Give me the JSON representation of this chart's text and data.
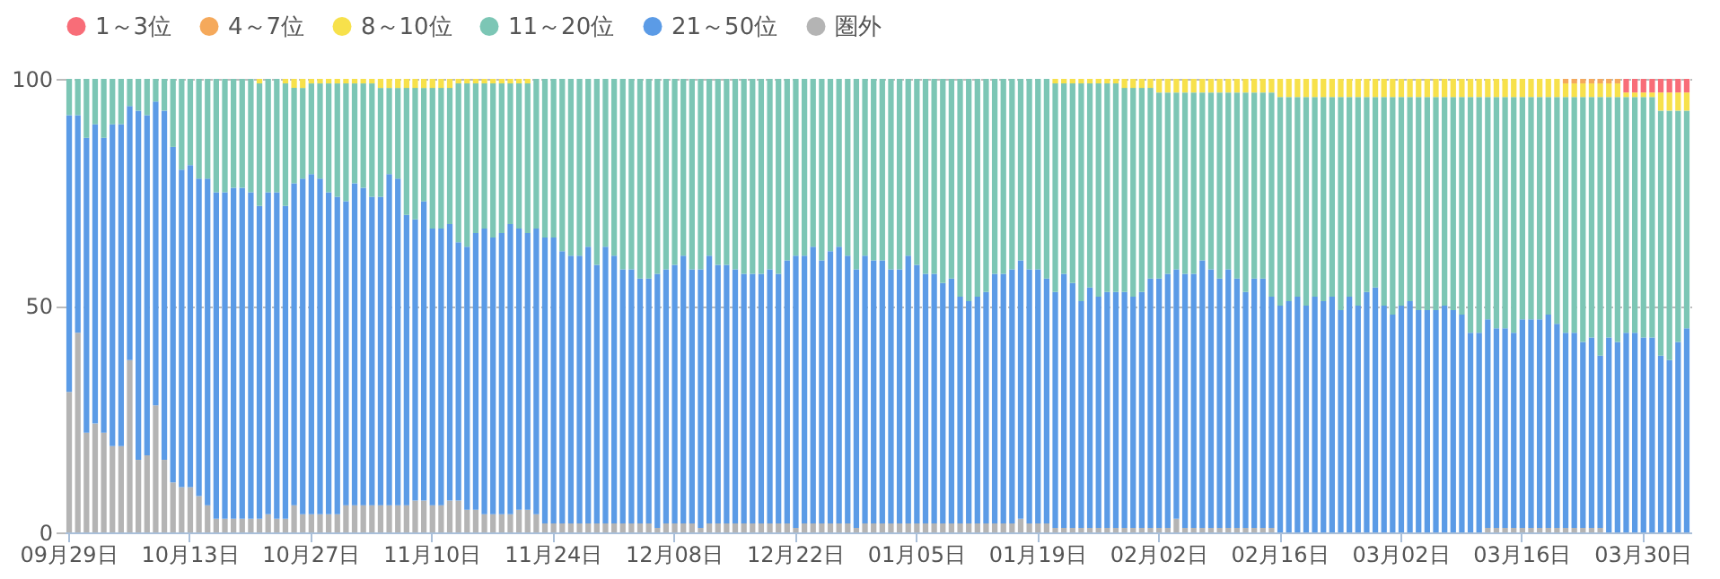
{
  "chart_data": {
    "type": "bar",
    "stacked": true,
    "grid": "y",
    "legend": "top left",
    "ylim": [
      0,
      100
    ],
    "yticks": [
      0,
      50,
      100
    ],
    "categories": [
      "09月29日",
      null,
      null,
      null,
      null,
      null,
      null,
      null,
      null,
      null,
      null,
      null,
      null,
      null,
      "10月13日",
      null,
      null,
      null,
      null,
      null,
      null,
      null,
      null,
      null,
      null,
      null,
      null,
      null,
      "10月27日",
      null,
      null,
      null,
      null,
      null,
      null,
      null,
      null,
      null,
      null,
      null,
      null,
      null,
      "11月10日",
      null,
      null,
      null,
      null,
      null,
      null,
      null,
      null,
      null,
      null,
      null,
      null,
      null,
      "11月24日",
      null,
      null,
      null,
      null,
      null,
      null,
      null,
      null,
      null,
      null,
      null,
      null,
      null,
      "12月08日",
      null,
      null,
      null,
      null,
      null,
      null,
      null,
      null,
      null,
      null,
      null,
      null,
      null,
      "12月22日",
      null,
      null,
      null,
      null,
      null,
      null,
      null,
      null,
      null,
      null,
      null,
      null,
      null,
      "01月05日",
      null,
      null,
      null,
      null,
      null,
      null,
      null,
      null,
      null,
      null,
      null,
      null,
      null,
      "01月19日",
      null,
      null,
      null,
      null,
      null,
      null,
      null,
      null,
      null,
      null,
      null,
      null,
      null,
      "02月02日",
      null,
      null,
      null,
      null,
      null,
      null,
      null,
      null,
      null,
      null,
      null,
      null,
      null,
      "02月16日",
      null,
      null,
      null,
      null,
      null,
      null,
      null,
      null,
      null,
      null,
      null,
      null,
      null,
      "03月02日",
      null,
      null,
      null,
      null,
      null,
      null,
      null,
      null,
      null,
      null,
      null,
      null,
      null,
      "03月16日",
      null,
      null,
      null,
      null,
      null,
      null,
      null,
      null,
      null,
      null,
      null,
      null,
      null,
      "03月30日",
      null,
      null,
      null,
      null,
      null
    ],
    "series": [
      {
        "name": "圏外",
        "color": "#b4b4b4",
        "values": [
          31,
          44,
          22,
          24,
          22,
          19,
          19,
          38,
          16,
          17,
          28,
          16,
          11,
          10,
          10,
          8,
          6,
          3,
          3,
          3,
          3,
          3,
          3,
          4,
          3,
          3,
          6,
          4,
          4,
          4,
          4,
          4,
          6,
          6,
          6,
          6,
          6,
          6,
          6,
          6,
          7,
          7,
          6,
          6,
          7,
          7,
          5,
          5,
          4,
          4,
          4,
          4,
          5,
          5,
          4,
          2,
          2,
          2,
          2,
          2,
          2,
          2,
          2,
          2,
          2,
          2,
          2,
          2,
          1,
          2,
          2,
          2,
          2,
          1,
          2,
          2,
          2,
          2,
          2,
          2,
          2,
          2,
          2,
          2,
          1,
          2,
          2,
          2,
          2,
          2,
          2,
          1,
          2,
          2,
          2,
          2,
          2,
          2,
          2,
          2,
          2,
          2,
          2,
          2,
          2,
          2,
          2,
          2,
          2,
          2,
          3,
          2,
          2,
          2,
          1,
          1,
          1,
          1,
          1,
          1,
          1,
          1,
          1,
          1,
          1,
          1,
          1,
          1,
          3,
          1,
          1,
          1,
          1,
          1,
          1,
          1,
          1,
          1,
          1,
          1,
          0,
          0,
          0,
          0,
          0,
          0,
          0,
          0,
          0,
          0,
          0,
          0,
          0,
          0,
          0,
          0,
          0,
          0,
          0,
          0,
          0,
          0,
          0,
          0,
          1,
          1,
          1,
          1,
          1,
          1,
          1,
          1,
          1,
          1,
          1,
          1,
          1,
          1,
          0,
          0,
          0,
          0,
          0,
          0,
          0,
          0,
          0,
          0
        ]
      },
      {
        "name": "21～50位",
        "color": "#5b9be6",
        "values": [
          61,
          48,
          65,
          66,
          65,
          71,
          71,
          56,
          77,
          75,
          67,
          77,
          74,
          70,
          71,
          70,
          72,
          72,
          72,
          73,
          73,
          72,
          69,
          71,
          72,
          69,
          71,
          74,
          75,
          74,
          71,
          70,
          67,
          71,
          70,
          68,
          68,
          73,
          72,
          64,
          62,
          66,
          61,
          61,
          61,
          57,
          58,
          61,
          63,
          61,
          62,
          64,
          62,
          61,
          63,
          63,
          63,
          60,
          59,
          59,
          61,
          57,
          61,
          59,
          56,
          56,
          54,
          54,
          56,
          56,
          57,
          59,
          56,
          57,
          59,
          57,
          57,
          56,
          55,
          55,
          55,
          56,
          55,
          58,
          60,
          59,
          61,
          58,
          60,
          61,
          59,
          57,
          59,
          58,
          58,
          56,
          56,
          59,
          57,
          55,
          55,
          53,
          54,
          50,
          49,
          50,
          51,
          55,
          55,
          56,
          57,
          56,
          56,
          54,
          52,
          56,
          54,
          50,
          53,
          51,
          52,
          52,
          52,
          51,
          52,
          55,
          55,
          56,
          55,
          56,
          56,
          59,
          57,
          55,
          57,
          55,
          52,
          55,
          55,
          51,
          50,
          51,
          52,
          50,
          52,
          51,
          52,
          49,
          52,
          50,
          53,
          54,
          50,
          48,
          50,
          51,
          49,
          49,
          49,
          50,
          49,
          48,
          44,
          44,
          46,
          44,
          44,
          43,
          46,
          46,
          46,
          47,
          45,
          43,
          43,
          41,
          42,
          38,
          43,
          42,
          44,
          44,
          43,
          43,
          39,
          38,
          42,
          45
        ]
      },
      {
        "name": "11～20位",
        "color": "#7cc6b5",
        "values": [
          8,
          8,
          13,
          10,
          13,
          10,
          10,
          6,
          7,
          8,
          5,
          7,
          15,
          20,
          19,
          22,
          22,
          25,
          25,
          24,
          24,
          25,
          27,
          25,
          25,
          27,
          21,
          20,
          20,
          21,
          24,
          25,
          26,
          22,
          23,
          25,
          24,
          19,
          20,
          28,
          29,
          25,
          31,
          31,
          30,
          35,
          36,
          33,
          32,
          34,
          33,
          31,
          32,
          33,
          33,
          35,
          35,
          38,
          39,
          39,
          37,
          41,
          37,
          39,
          42,
          42,
          44,
          44,
          43,
          42,
          41,
          39,
          42,
          42,
          39,
          41,
          41,
          42,
          43,
          43,
          43,
          42,
          43,
          40,
          39,
          39,
          37,
          40,
          38,
          37,
          39,
          42,
          39,
          40,
          40,
          42,
          42,
          39,
          41,
          43,
          43,
          45,
          44,
          48,
          49,
          48,
          47,
          43,
          43,
          42,
          40,
          42,
          42,
          44,
          46,
          42,
          44,
          48,
          45,
          47,
          46,
          46,
          45,
          46,
          45,
          42,
          41,
          40,
          39,
          40,
          40,
          37,
          39,
          41,
          39,
          41,
          44,
          41,
          41,
          45,
          46,
          45,
          44,
          46,
          44,
          45,
          44,
          47,
          44,
          46,
          43,
          42,
          46,
          48,
          46,
          45,
          47,
          47,
          47,
          46,
          47,
          48,
          52,
          52,
          49,
          51,
          51,
          52,
          49,
          49,
          49,
          48,
          50,
          52,
          52,
          54,
          53,
          57,
          53,
          54,
          52,
          52,
          53,
          53,
          54,
          55,
          51,
          48
        ]
      },
      {
        "name": "8～10位",
        "color": "#f7e14b",
        "values": [
          0,
          0,
          0,
          0,
          0,
          0,
          0,
          0,
          0,
          0,
          0,
          0,
          0,
          0,
          0,
          0,
          0,
          0,
          0,
          0,
          0,
          0,
          1,
          0,
          0,
          1,
          2,
          2,
          1,
          1,
          1,
          1,
          1,
          1,
          1,
          1,
          2,
          2,
          2,
          2,
          2,
          2,
          2,
          2,
          2,
          1,
          1,
          1,
          1,
          1,
          1,
          1,
          1,
          1,
          0,
          0,
          0,
          0,
          0,
          0,
          0,
          0,
          0,
          0,
          0,
          0,
          0,
          0,
          0,
          0,
          0,
          0,
          0,
          0,
          0,
          0,
          0,
          0,
          0,
          0,
          0,
          0,
          0,
          0,
          0,
          0,
          0,
          0,
          0,
          0,
          0,
          0,
          0,
          0,
          0,
          0,
          0,
          0,
          0,
          0,
          0,
          0,
          0,
          0,
          0,
          0,
          0,
          0,
          0,
          0,
          0,
          0,
          0,
          0,
          1,
          1,
          1,
          1,
          1,
          1,
          1,
          1,
          2,
          2,
          2,
          2,
          3,
          3,
          3,
          3,
          3,
          3,
          3,
          3,
          3,
          3,
          3,
          3,
          3,
          3,
          4,
          4,
          4,
          4,
          4,
          4,
          4,
          4,
          4,
          4,
          4,
          4,
          4,
          4,
          4,
          4,
          4,
          4,
          4,
          4,
          4,
          4,
          4,
          4,
          4,
          4,
          4,
          4,
          4,
          4,
          4,
          4,
          4,
          3,
          3,
          3,
          3,
          3,
          3,
          3,
          1,
          1,
          1,
          1,
          4,
          4,
          4,
          4
        ]
      },
      {
        "name": "4～7位",
        "color": "#f5a95b",
        "values": [
          0,
          0,
          0,
          0,
          0,
          0,
          0,
          0,
          0,
          0,
          0,
          0,
          0,
          0,
          0,
          0,
          0,
          0,
          0,
          0,
          0,
          0,
          0,
          0,
          0,
          0,
          0,
          0,
          0,
          0,
          0,
          0,
          0,
          0,
          0,
          0,
          0,
          0,
          0,
          0,
          0,
          0,
          0,
          0,
          0,
          0,
          0,
          0,
          0,
          0,
          0,
          0,
          0,
          0,
          0,
          0,
          0,
          0,
          0,
          0,
          0,
          0,
          0,
          0,
          0,
          0,
          0,
          0,
          0,
          0,
          0,
          0,
          0,
          0,
          0,
          0,
          0,
          0,
          0,
          0,
          0,
          0,
          0,
          0,
          0,
          0,
          0,
          0,
          0,
          0,
          0,
          0,
          0,
          0,
          0,
          0,
          0,
          0,
          0,
          0,
          0,
          0,
          0,
          0,
          0,
          0,
          0,
          0,
          0,
          0,
          0,
          0,
          0,
          0,
          0,
          0,
          0,
          0,
          0,
          0,
          0,
          0,
          0,
          0,
          0,
          0,
          0,
          0,
          0,
          0,
          0,
          0,
          0,
          0,
          0,
          0,
          0,
          0,
          0,
          0,
          0,
          0,
          0,
          0,
          0,
          0,
          0,
          0,
          0,
          0,
          0,
          0,
          0,
          0,
          0,
          0,
          0,
          0,
          0,
          0,
          0,
          0,
          0,
          0,
          0,
          0,
          0,
          0,
          0,
          0,
          0,
          0,
          0,
          1,
          1,
          1,
          1,
          1,
          1,
          1,
          0,
          0,
          0,
          0,
          0,
          0,
          0,
          0
        ]
      },
      {
        "name": "1～3位",
        "color": "#f86d78",
        "values": [
          0,
          0,
          0,
          0,
          0,
          0,
          0,
          0,
          0,
          0,
          0,
          0,
          0,
          0,
          0,
          0,
          0,
          0,
          0,
          0,
          0,
          0,
          0,
          0,
          0,
          0,
          0,
          0,
          0,
          0,
          0,
          0,
          0,
          0,
          0,
          0,
          0,
          0,
          0,
          0,
          0,
          0,
          0,
          0,
          0,
          0,
          0,
          0,
          0,
          0,
          0,
          0,
          0,
          0,
          0,
          0,
          0,
          0,
          0,
          0,
          0,
          0,
          0,
          0,
          0,
          0,
          0,
          0,
          0,
          0,
          0,
          0,
          0,
          0,
          0,
          0,
          0,
          0,
          0,
          0,
          0,
          0,
          0,
          0,
          0,
          0,
          0,
          0,
          0,
          0,
          0,
          0,
          0,
          0,
          0,
          0,
          0,
          0,
          0,
          0,
          0,
          0,
          0,
          0,
          0,
          0,
          0,
          0,
          0,
          0,
          0,
          0,
          0,
          0,
          0,
          0,
          0,
          0,
          0,
          0,
          0,
          0,
          0,
          0,
          0,
          0,
          0,
          0,
          0,
          0,
          0,
          0,
          0,
          0,
          0,
          0,
          0,
          0,
          0,
          0,
          0,
          0,
          0,
          0,
          0,
          0,
          0,
          0,
          0,
          0,
          0,
          0,
          0,
          0,
          0,
          0,
          0,
          0,
          0,
          0,
          0,
          0,
          0,
          0,
          0,
          0,
          0,
          0,
          0,
          0,
          0,
          0,
          0,
          0,
          0,
          0,
          0,
          0,
          0,
          0,
          3,
          3,
          3,
          3,
          3,
          3,
          3,
          3
        ]
      }
    ]
  }
}
